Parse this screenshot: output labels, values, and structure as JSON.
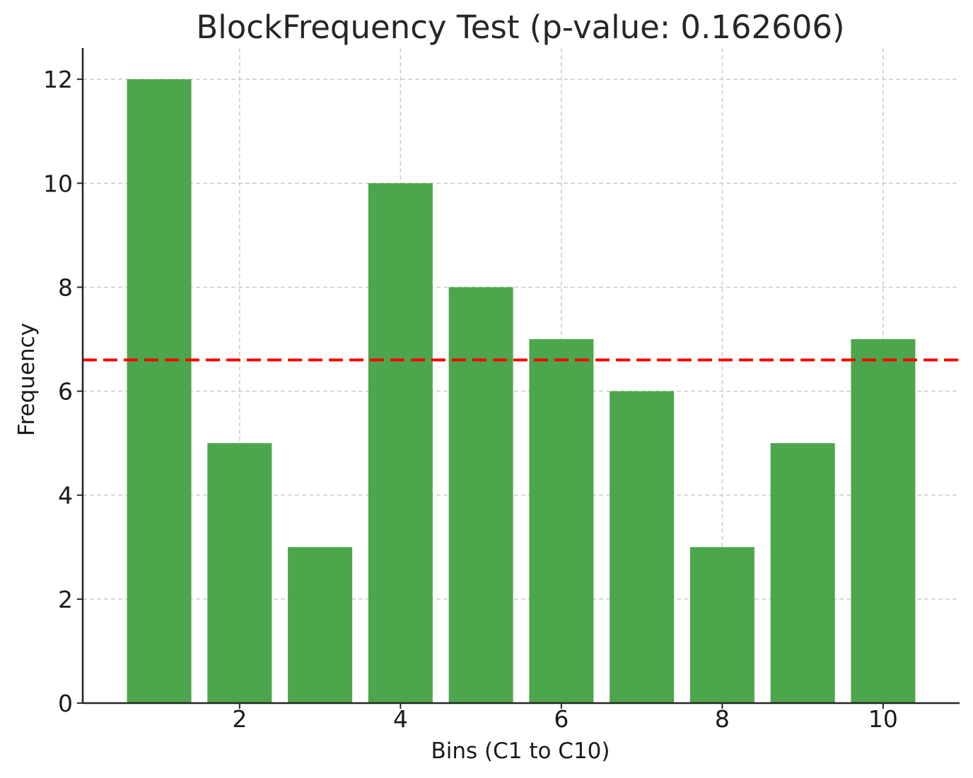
{
  "chart_data": {
    "type": "bar",
    "title": "BlockFrequency Test (p-value: 0.162606)",
    "xlabel": "Bins (C1 to C10)",
    "ylabel": "Frequency",
    "x": [
      1,
      2,
      3,
      4,
      5,
      6,
      7,
      8,
      9,
      10
    ],
    "values": [
      12,
      5,
      3,
      10,
      8,
      7,
      6,
      3,
      5,
      7
    ],
    "bar_color": "#4ca64c",
    "xlim": [
      0.05,
      10.95
    ],
    "ylim": [
      0,
      12.6
    ],
    "x_ticks": [
      2,
      4,
      6,
      8,
      10
    ],
    "y_ticks": [
      0,
      2,
      4,
      6,
      8,
      10,
      12
    ],
    "grid": true,
    "reference_line": {
      "y": 6.6,
      "color": "#ff0000",
      "style": "dashed"
    }
  }
}
